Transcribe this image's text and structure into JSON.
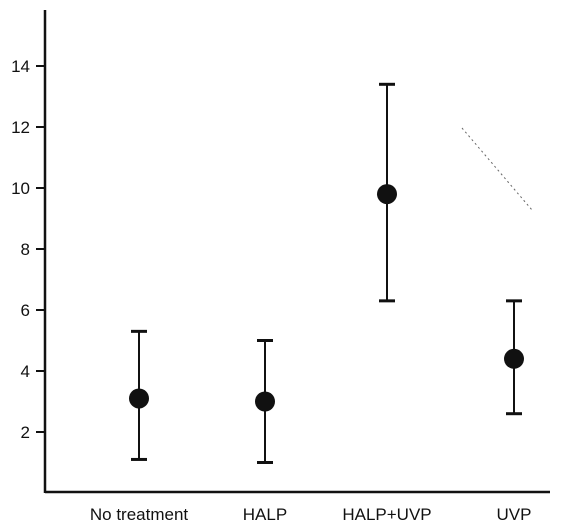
{
  "chart_data": {
    "type": "scatter",
    "title": "",
    "xlabel": "",
    "ylabel": "",
    "categories": [
      "No treatment",
      "HALP",
      "HALP+UVP",
      "UVP"
    ],
    "series": [
      {
        "values": [
          3.1,
          3.0,
          9.8,
          4.4
        ],
        "error_low": [
          1.1,
          1.0,
          6.3,
          2.6
        ],
        "error_high": [
          5.3,
          5.0,
          13.4,
          6.3
        ]
      }
    ],
    "yticks": [
      2,
      4,
      6,
      8,
      10,
      12,
      14
    ],
    "ylim": [
      0,
      16
    ],
    "grid": false,
    "legend": "none",
    "colors": {
      "marker": "#111111",
      "axis": "#111111",
      "background": "#ffffff"
    }
  }
}
